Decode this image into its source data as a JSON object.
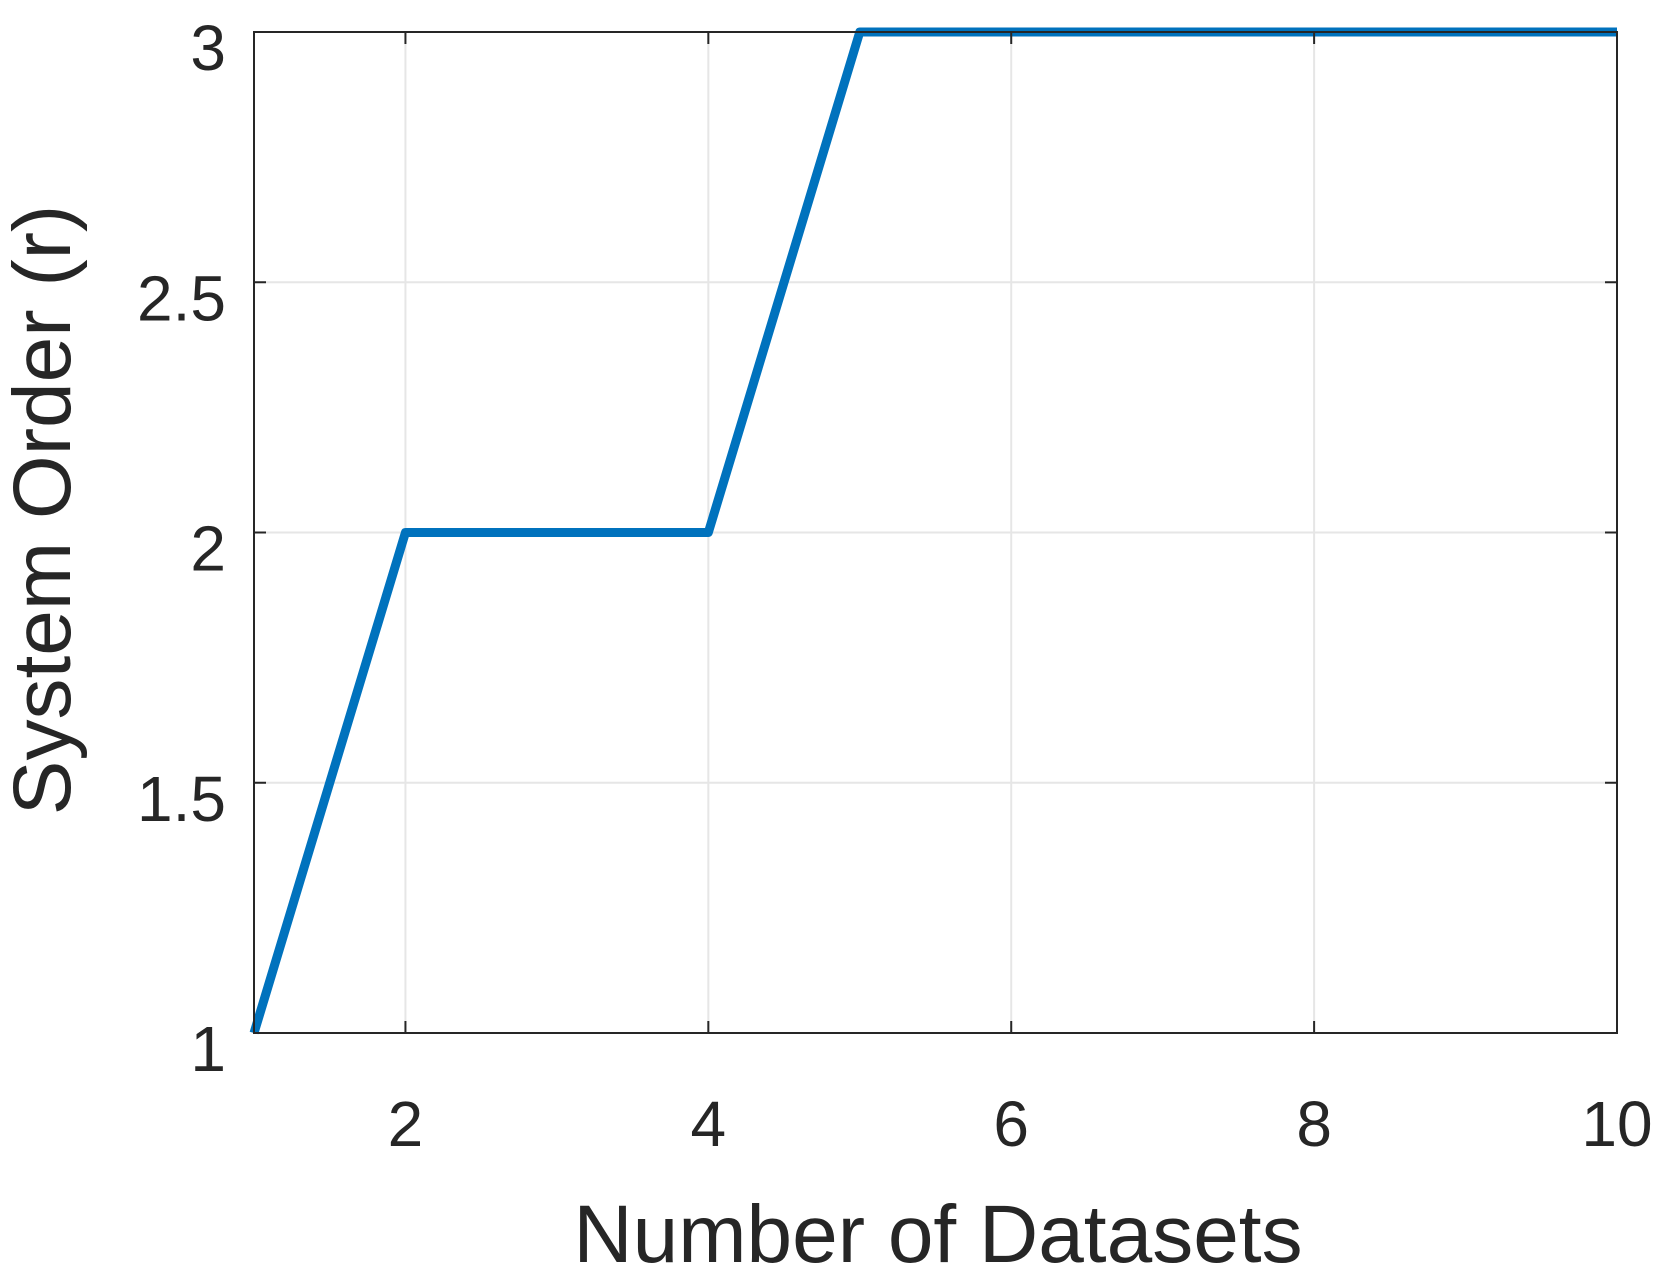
{
  "chart_data": {
    "type": "line",
    "title": "",
    "xlabel": "Number of Datasets",
    "ylabel": "System Order (r)",
    "xlim": [
      1,
      10
    ],
    "ylim": [
      1,
      3
    ],
    "xticks": [
      2,
      4,
      6,
      8,
      10
    ],
    "xtick_labels": [
      "2",
      "4",
      "6",
      "8",
      "10"
    ],
    "yticks": [
      1,
      1.5,
      2,
      2.5,
      3
    ],
    "ytick_labels": [
      "1",
      "1.5",
      "2",
      "2.5",
      "3"
    ],
    "grid": true,
    "series": [
      {
        "color": "#0072BD",
        "x": [
          1,
          2,
          3,
          4,
          5,
          6,
          7,
          8,
          9,
          10
        ],
        "y": [
          1,
          2,
          2,
          2,
          3,
          3,
          3,
          3,
          3,
          3
        ]
      }
    ]
  }
}
